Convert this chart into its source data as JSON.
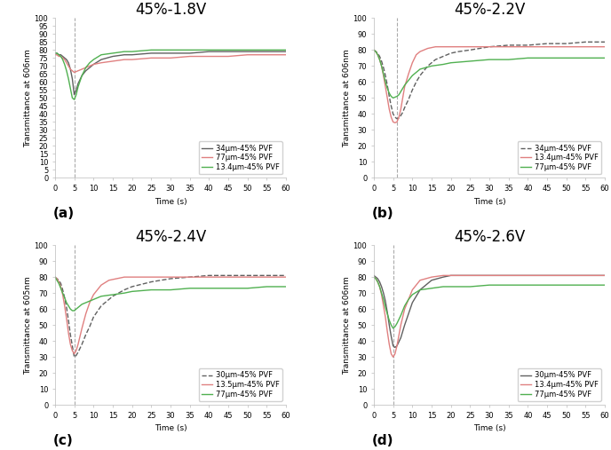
{
  "panels": [
    {
      "title": "45%-1.8V",
      "label": "(a)",
      "ylabel": "Transmittance at 606nm",
      "xlabel": "Time (s)",
      "vline": 5,
      "ylim": [
        0,
        100
      ],
      "xlim": [
        0,
        60
      ],
      "xticks": [
        0,
        5,
        10,
        15,
        20,
        25,
        30,
        35,
        40,
        45,
        50,
        55,
        60
      ],
      "yticks": [
        0,
        5,
        10,
        15,
        20,
        25,
        30,
        35,
        40,
        45,
        50,
        55,
        60,
        65,
        70,
        75,
        80,
        85,
        90,
        95,
        100
      ],
      "legend_loc": "lower right",
      "series": [
        {
          "label": "34μm-45% PVF",
          "color": "#606060",
          "style": "-",
          "lw": 1.0,
          "t": [
            0,
            0.5,
            1,
            1.5,
            2,
            2.5,
            3,
            3.5,
            4,
            4.5,
            5,
            5.5,
            6,
            7,
            8,
            9,
            10,
            12,
            15,
            18,
            20,
            25,
            30,
            35,
            40,
            45,
            50,
            55,
            60
          ],
          "v": [
            78,
            78,
            77,
            77,
            76,
            75,
            74,
            72,
            68,
            62,
            52,
            55,
            59,
            64,
            67,
            69,
            71,
            74,
            76,
            77,
            77,
            78,
            78,
            78,
            79,
            79,
            79,
            79,
            79
          ]
        },
        {
          "label": "77μm-45% PVF",
          "color": "#e08080",
          "style": "-",
          "lw": 1.0,
          "t": [
            0,
            0.5,
            1,
            1.5,
            2,
            2.5,
            3,
            3.5,
            4,
            4.5,
            5,
            5.5,
            6,
            7,
            8,
            9,
            10,
            12,
            15,
            18,
            20,
            25,
            30,
            35,
            40,
            45,
            50,
            55,
            60
          ],
          "v": [
            77,
            77,
            76,
            76,
            75,
            74,
            72,
            70,
            68,
            67,
            66,
            66.5,
            67,
            68,
            69,
            70,
            71,
            72,
            73,
            74,
            74,
            75,
            75,
            76,
            76,
            76,
            77,
            77,
            77
          ]
        },
        {
          "label": "13.4μm-45% PVF",
          "color": "#50b050",
          "style": "-",
          "lw": 1.0,
          "t": [
            0,
            0.5,
            1,
            1.5,
            2,
            2.5,
            3,
            3.5,
            4,
            4.5,
            5,
            5.5,
            6,
            7,
            8,
            9,
            10,
            12,
            15,
            18,
            20,
            25,
            30,
            35,
            40,
            45,
            50,
            55,
            60
          ],
          "v": [
            78,
            78,
            77,
            76,
            74,
            71,
            67,
            62,
            56,
            50,
            49,
            52,
            57,
            64,
            69,
            72,
            74,
            77,
            78,
            79,
            79,
            80,
            80,
            80,
            80,
            80,
            80,
            80,
            80
          ]
        }
      ]
    },
    {
      "title": "45%-2.2V",
      "label": "(b)",
      "ylabel": "Transmittance at 606nm",
      "xlabel": "Time (s)",
      "vline": 6,
      "ylim": [
        0,
        100
      ],
      "xlim": [
        0,
        60
      ],
      "xticks": [
        0,
        5,
        10,
        15,
        20,
        25,
        30,
        35,
        40,
        45,
        50,
        55,
        60
      ],
      "yticks": [
        0,
        10,
        20,
        30,
        40,
        50,
        60,
        70,
        80,
        90,
        100
      ],
      "legend_loc": "lower right",
      "series": [
        {
          "label": "34μm-45% PVF",
          "color": "#606060",
          "style": "--",
          "lw": 1.0,
          "t": [
            0,
            0.5,
            1,
            1.5,
            2,
            2.5,
            3,
            3.5,
            4,
            4.5,
            5,
            5.5,
            6,
            6.5,
            7,
            7.5,
            8,
            9,
            10,
            11,
            12,
            14,
            16,
            18,
            20,
            22,
            25,
            30,
            35,
            40,
            45,
            50,
            55,
            60
          ],
          "v": [
            80,
            79,
            78,
            76,
            73,
            69,
            64,
            58,
            51,
            45,
            40,
            38,
            37,
            37.5,
            39,
            41,
            44,
            49,
            55,
            60,
            64,
            70,
            74,
            76,
            78,
            79,
            80,
            82,
            83,
            83,
            84,
            84,
            85,
            85
          ]
        },
        {
          "label": "13.4μm-45% PVF",
          "color": "#e08080",
          "style": "-",
          "lw": 1.0,
          "t": [
            0,
            0.5,
            1,
            1.5,
            2,
            2.5,
            3,
            3.5,
            4,
            4.5,
            5,
            5.5,
            6,
            6.5,
            7,
            7.5,
            8,
            9,
            10,
            11,
            12,
            14,
            16,
            18,
            20,
            22,
            25,
            30,
            35,
            40,
            45,
            50,
            55,
            60
          ],
          "v": [
            80,
            79,
            77,
            74,
            70,
            64,
            57,
            50,
            43,
            38,
            35,
            34.5,
            35,
            38,
            43,
            50,
            57,
            65,
            72,
            77,
            79,
            81,
            82,
            82,
            82,
            82,
            82,
            82,
            82,
            82,
            82,
            82,
            82,
            82
          ]
        },
        {
          "label": "77μm-45% PVF",
          "color": "#50b050",
          "style": "-",
          "lw": 1.0,
          "t": [
            0,
            0.5,
            1,
            1.5,
            2,
            2.5,
            3,
            3.5,
            4,
            4.5,
            5,
            5.5,
            6,
            6.5,
            7,
            7.5,
            8,
            9,
            10,
            12,
            15,
            18,
            20,
            25,
            30,
            35,
            40,
            45,
            50,
            55,
            60
          ],
          "v": [
            80,
            79,
            77,
            74,
            70,
            65,
            60,
            56,
            53,
            51,
            50,
            50.5,
            51,
            52,
            54,
            56,
            58,
            61,
            64,
            68,
            70,
            71,
            72,
            73,
            74,
            74,
            75,
            75,
            75,
            75,
            75
          ]
        }
      ]
    },
    {
      "title": "45%-2.4V",
      "label": "(c)",
      "ylabel": "Transmittance at 605nm",
      "xlabel": "Time (s)",
      "vline": 5,
      "ylim": [
        0,
        100
      ],
      "xlim": [
        0,
        60
      ],
      "xticks": [
        0,
        5,
        10,
        15,
        20,
        25,
        30,
        35,
        40,
        45,
        50,
        55,
        60
      ],
      "yticks": [
        0,
        10,
        20,
        30,
        40,
        50,
        60,
        70,
        80,
        90,
        100
      ],
      "legend_loc": "lower right",
      "series": [
        {
          "label": "30μm-45% PVF",
          "color": "#606060",
          "style": "--",
          "lw": 1.0,
          "t": [
            0,
            0.5,
            1,
            1.5,
            2,
            2.5,
            3,
            3.5,
            4,
            4.5,
            5,
            5.5,
            6,
            7,
            8,
            9,
            10,
            12,
            15,
            18,
            20,
            25,
            30,
            35,
            40,
            45,
            50,
            55,
            60
          ],
          "v": [
            80,
            79,
            78,
            76,
            72,
            67,
            61,
            53,
            44,
            37,
            30,
            31,
            33,
            38,
            44,
            49,
            55,
            62,
            68,
            72,
            74,
            77,
            79,
            80,
            81,
            81,
            81,
            81,
            81
          ]
        },
        {
          "label": "13.5μm-45% PVF",
          "color": "#e08080",
          "style": "-",
          "lw": 1.0,
          "t": [
            0,
            0.5,
            1,
            1.5,
            2,
            2.5,
            3,
            3.5,
            4,
            4.5,
            5,
            5.5,
            6,
            7,
            8,
            9,
            10,
            12,
            14,
            16,
            18,
            20,
            25,
            30,
            35,
            40,
            45,
            50,
            55,
            60
          ],
          "v": [
            80,
            79,
            77,
            74,
            69,
            62,
            54,
            45,
            38,
            34,
            32,
            34,
            38,
            48,
            57,
            64,
            69,
            75,
            78,
            79,
            80,
            80,
            80,
            80,
            80,
            80,
            80,
            80,
            80,
            80
          ]
        },
        {
          "label": "77μm-45% PVF",
          "color": "#50b050",
          "style": "-",
          "lw": 1.0,
          "t": [
            0,
            0.5,
            1,
            1.5,
            2,
            2.5,
            3,
            3.5,
            4,
            4.5,
            5,
            5.5,
            6,
            7,
            8,
            9,
            10,
            12,
            15,
            18,
            20,
            25,
            30,
            35,
            40,
            45,
            50,
            55,
            60
          ],
          "v": [
            80,
            78,
            76,
            73,
            70,
            67,
            64,
            62,
            60,
            59,
            59,
            60,
            61,
            63,
            64,
            65,
            66,
            68,
            69,
            70,
            71,
            72,
            72,
            73,
            73,
            73,
            73,
            74,
            74
          ]
        }
      ]
    },
    {
      "title": "45%-2.6V",
      "label": "(d)",
      "ylabel": "Transmittance at 606nm",
      "xlabel": "Time (s)",
      "vline": 5,
      "ylim": [
        0,
        100
      ],
      "xlim": [
        0,
        60
      ],
      "xticks": [
        0,
        5,
        10,
        15,
        20,
        25,
        30,
        35,
        40,
        45,
        50,
        55,
        60
      ],
      "yticks": [
        0,
        10,
        20,
        30,
        40,
        50,
        60,
        70,
        80,
        90,
        100
      ],
      "legend_loc": "lower right",
      "series": [
        {
          "label": "30μm-45% PVF",
          "color": "#606060",
          "style": "-",
          "lw": 1.0,
          "t": [
            0,
            0.5,
            1,
            1.5,
            2,
            2.5,
            3,
            3.5,
            4,
            4.5,
            5,
            5.5,
            6,
            7,
            8,
            9,
            10,
            12,
            15,
            18,
            20,
            25,
            30,
            35,
            40,
            45,
            50,
            55,
            60
          ],
          "v": [
            81,
            80,
            79,
            77,
            74,
            70,
            65,
            58,
            50,
            43,
            37,
            36,
            37,
            42,
            50,
            57,
            64,
            72,
            78,
            80,
            81,
            81,
            81,
            81,
            81,
            81,
            81,
            81,
            81
          ]
        },
        {
          "label": "13.4μm-45% PVF",
          "color": "#e08080",
          "style": "-",
          "lw": 1.0,
          "t": [
            0,
            0.5,
            1,
            1.5,
            2,
            2.5,
            3,
            3.5,
            4,
            4.5,
            5,
            5.5,
            6,
            7,
            8,
            9,
            10,
            12,
            15,
            18,
            20,
            25,
            30,
            35,
            40,
            45,
            50,
            55,
            60
          ],
          "v": [
            80,
            79,
            77,
            74,
            69,
            62,
            55,
            46,
            38,
            32,
            30,
            32,
            37,
            50,
            60,
            66,
            72,
            78,
            80,
            81,
            81,
            81,
            81,
            81,
            81,
            81,
            81,
            81,
            81
          ]
        },
        {
          "label": "77μm-45% PVF",
          "color": "#50b050",
          "style": "-",
          "lw": 1.0,
          "t": [
            0,
            0.5,
            1,
            1.5,
            2,
            2.5,
            3,
            3.5,
            4,
            4.5,
            5,
            5.5,
            6,
            7,
            8,
            9,
            10,
            12,
            15,
            18,
            20,
            25,
            30,
            35,
            40,
            45,
            50,
            55,
            60
          ],
          "v": [
            80,
            79,
            77,
            74,
            70,
            66,
            61,
            57,
            53,
            50,
            48,
            49,
            51,
            56,
            62,
            66,
            69,
            72,
            73,
            74,
            74,
            74,
            75,
            75,
            75,
            75,
            75,
            75,
            75
          ]
        }
      ]
    }
  ],
  "bg_color": "#ffffff",
  "title_fontsize": 12,
  "tick_fontsize": 6,
  "legend_fontsize": 6,
  "axis_label_fontsize": 6.5
}
